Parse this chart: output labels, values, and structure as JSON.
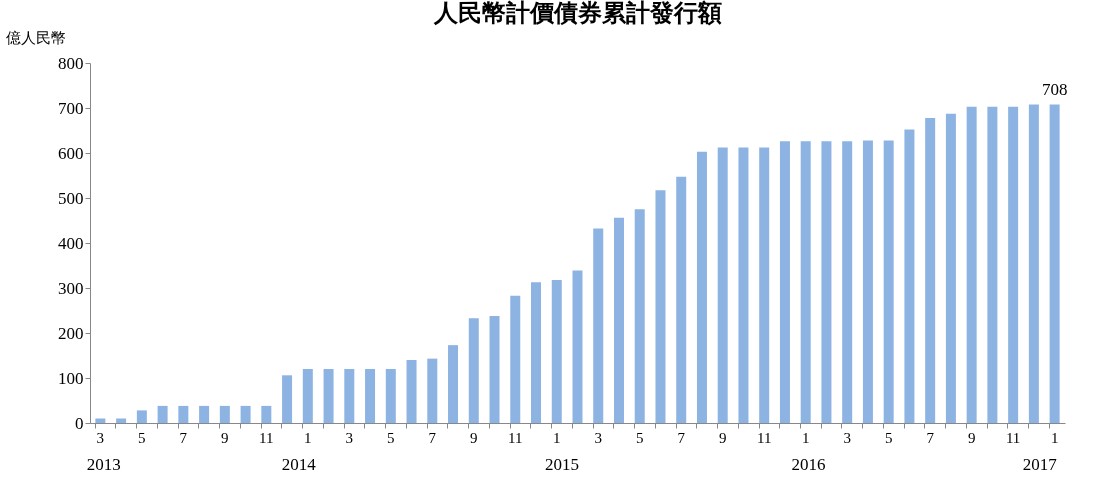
{
  "chart_data": {
    "type": "bar",
    "title": "人民幣計價債券累計發行額",
    "ylabel": "億人民幣",
    "categories": [
      "3",
      null,
      "5",
      null,
      "7",
      null,
      "9",
      null,
      "11",
      null,
      "1",
      null,
      "3",
      null,
      "5",
      null,
      "7",
      null,
      "9",
      null,
      "11",
      null,
      "1",
      null,
      "3",
      null,
      "5",
      null,
      "7",
      null,
      "9",
      null,
      "11",
      null,
      "1",
      null,
      "3",
      null,
      "5",
      null,
      "7",
      null,
      "9",
      null,
      "11",
      null,
      "1"
    ],
    "values": [
      10,
      10,
      28,
      38,
      38,
      38,
      38,
      38,
      38,
      106,
      120,
      120,
      120,
      120,
      120,
      140,
      143,
      173,
      233,
      238,
      283,
      313,
      318,
      339,
      432,
      456,
      475,
      517,
      547,
      603,
      612,
      612,
      612,
      626,
      626,
      626,
      626,
      628,
      628,
      652,
      678,
      687,
      703,
      703,
      703,
      708,
      708
    ],
    "value_labels": [
      null,
      null,
      null,
      null,
      null,
      null,
      null,
      null,
      null,
      null,
      null,
      null,
      null,
      null,
      null,
      null,
      null,
      null,
      null,
      null,
      null,
      null,
      null,
      null,
      null,
      null,
      null,
      null,
      null,
      null,
      null,
      null,
      null,
      null,
      null,
      null,
      null,
      null,
      null,
      null,
      null,
      null,
      null,
      null,
      null,
      null,
      "708"
    ],
    "color": "#8db3e2",
    "ylim": [
      0,
      800
    ],
    "yticks": [
      0,
      100,
      200,
      300,
      400,
      500,
      600,
      700,
      800
    ],
    "grid": false,
    "annotations": [
      "2013",
      "2014",
      "2015",
      "2016",
      "2017"
    ]
  }
}
